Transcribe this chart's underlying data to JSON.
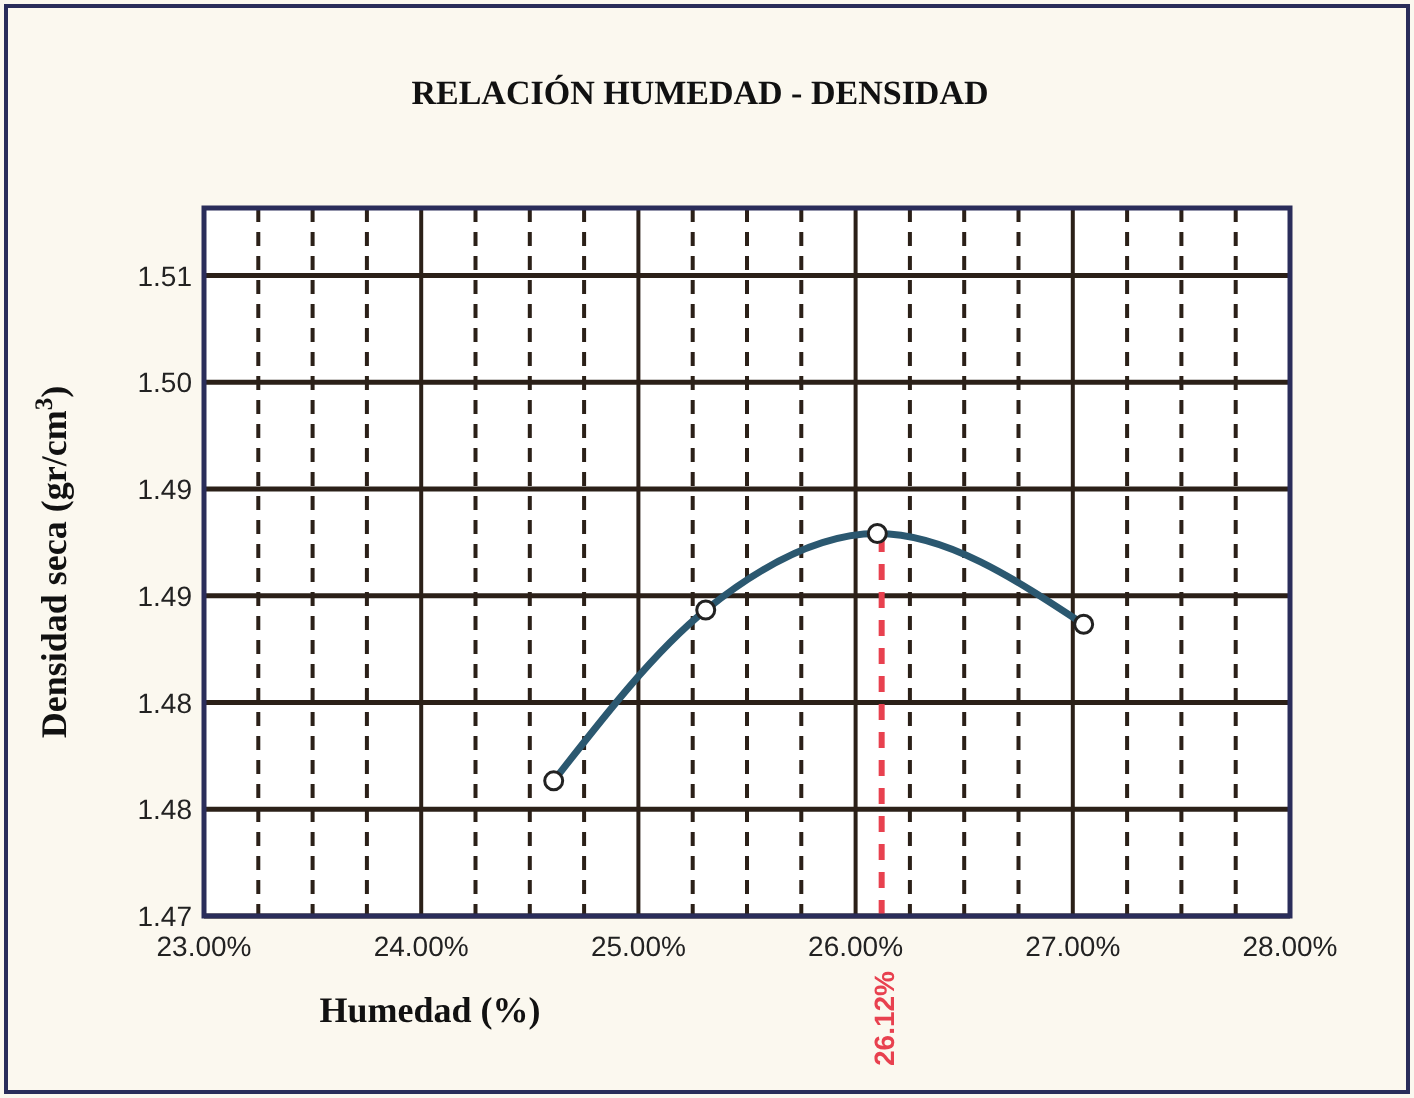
{
  "chart_data": {
    "type": "line",
    "title": "RELACIÓN HUMEDAD - DENSIDAD",
    "xlabel": "Humedad (%)",
    "ylabel": "Densidad seca (gr/cm$^{3}$)",
    "x": [
      24.61,
      25.31,
      26.1,
      27.05
    ],
    "series": [
      {
        "color": "#2b5870",
        "values": [
          1.4776,
          1.4872,
          1.4915,
          1.4864
        ]
      }
    ],
    "xlim": [
      23,
      28
    ],
    "xticks": [
      {
        "value": 23,
        "label": "23.00%"
      },
      {
        "value": 24,
        "label": "24.00%"
      },
      {
        "value": 25,
        "label": "25.00%"
      },
      {
        "value": 26,
        "label": "26.00%"
      },
      {
        "value": 27,
        "label": "27.00%"
      },
      {
        "value": 28,
        "label": "28.00%"
      }
    ],
    "ylim": [
      1.47,
      1.5098
    ],
    "yticks": [
      {
        "value": 1.47,
        "label": "1.47"
      },
      {
        "value": 1.476,
        "label": "1.48"
      },
      {
        "value": 1.482,
        "label": "1.48"
      },
      {
        "value": 1.488,
        "label": "1.49"
      },
      {
        "value": 1.494,
        "label": "1.49"
      },
      {
        "value": 1.5,
        "label": "1.50"
      },
      {
        "value": 1.506,
        "label": "1.51"
      }
    ],
    "ref_lines": [
      {
        "axis": "x",
        "value": 26.12,
        "label": "26.12%",
        "color": "#e8414f",
        "line_style": "dashed"
      }
    ],
    "grid": true,
    "marker": "circle",
    "line_style": "solid"
  }
}
